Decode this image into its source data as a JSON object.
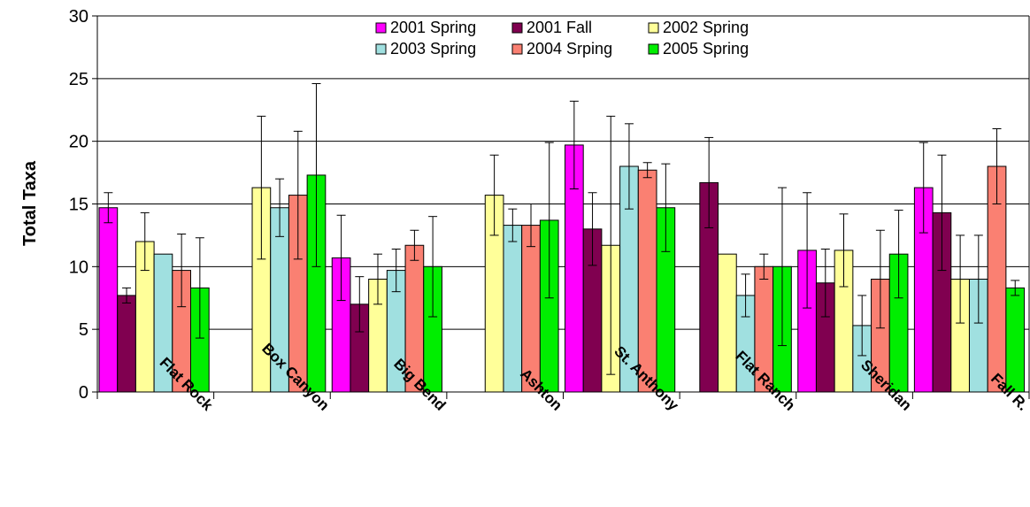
{
  "chart_data": {
    "type": "bar",
    "title": "",
    "xlabel": "",
    "ylabel": "Total Taxa",
    "ylim": [
      0,
      30
    ],
    "yticks": [
      0,
      5,
      10,
      15,
      20,
      25,
      30
    ],
    "grid": true,
    "legend_position": "top-right",
    "categories": [
      "Flat Rock",
      "Box Canyon",
      "Big Bend",
      "Ashton",
      "St. Anthony",
      "Flat Ranch",
      "Sheridan",
      "Fall R."
    ],
    "series": [
      {
        "name": "2001 Spring",
        "color": "#FF00FF",
        "values": [
          14.7,
          null,
          10.7,
          null,
          19.7,
          null,
          11.3,
          16.3
        ],
        "errors": [
          1.2,
          null,
          3.4,
          null,
          3.5,
          null,
          4.6,
          3.6
        ]
      },
      {
        "name": "2001 Fall",
        "color": "#800050",
        "values": [
          7.7,
          null,
          7.0,
          null,
          13.0,
          16.7,
          8.7,
          14.3
        ],
        "errors": [
          0.6,
          null,
          2.2,
          null,
          2.9,
          3.6,
          2.7,
          4.6
        ]
      },
      {
        "name": "2002 Spring",
        "color": "#FFFF99",
        "values": [
          12.0,
          16.3,
          9.0,
          15.7,
          11.7,
          11.0,
          11.3,
          9.0
        ],
        "errors": [
          2.3,
          5.7,
          2.0,
          3.2,
          10.3,
          null,
          2.9,
          3.5
        ]
      },
      {
        "name": "2003 Spring",
        "color": "#A0E0E0",
        "values": [
          11.0,
          14.7,
          9.7,
          13.3,
          18.0,
          7.7,
          5.3,
          9.0
        ],
        "errors": [
          null,
          2.3,
          1.7,
          1.3,
          3.4,
          1.7,
          2.4,
          3.5
        ]
      },
      {
        "name": "2004 Srping",
        "color": "#FA8072",
        "values": [
          9.7,
          15.7,
          11.7,
          13.3,
          17.7,
          10.0,
          9.0,
          18.0
        ],
        "errors": [
          2.9,
          5.1,
          1.2,
          1.7,
          0.6,
          1.0,
          3.9,
          3.0
        ]
      },
      {
        "name": "2005 Spring",
        "color": "#00EE00",
        "values": [
          8.3,
          17.3,
          10.0,
          13.7,
          14.7,
          10.0,
          11.0,
          8.3
        ],
        "errors": [
          4.0,
          7.3,
          4.0,
          6.2,
          3.5,
          6.3,
          3.5,
          0.6
        ]
      }
    ]
  }
}
